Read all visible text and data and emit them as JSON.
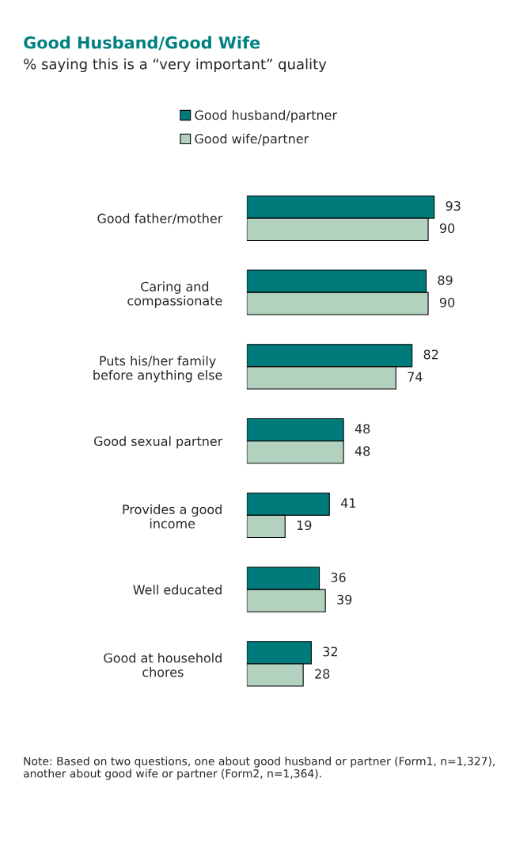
{
  "chart_data": {
    "type": "bar",
    "orientation": "horizontal",
    "title": "Good Husband/Good Wife",
    "subtitle": "% saying this is a “very important” quality",
    "categories": [
      "Good father/mother",
      "Caring and\ncompassionate",
      "Puts his/her family\nbefore anything else",
      "Good sexual partner",
      "Provides a good\nincome",
      "Well educated",
      "Good at household\nchores"
    ],
    "series": [
      {
        "name": "Good husband/partner",
        "color": "#007b7b",
        "values": [
          93,
          89,
          82,
          48,
          41,
          36,
          32
        ]
      },
      {
        "name": "Good wife/partner",
        "color": "#b3d1bf",
        "values": [
          90,
          90,
          74,
          48,
          19,
          39,
          28
        ]
      }
    ],
    "data_labels": true,
    "legend": "top",
    "grid": false,
    "annotations": [
      "Note: Based on two questions, one about good husband or partner (Form1, n=1,327), another about good wife or partner (Form2, n=1,364)."
    ]
  }
}
